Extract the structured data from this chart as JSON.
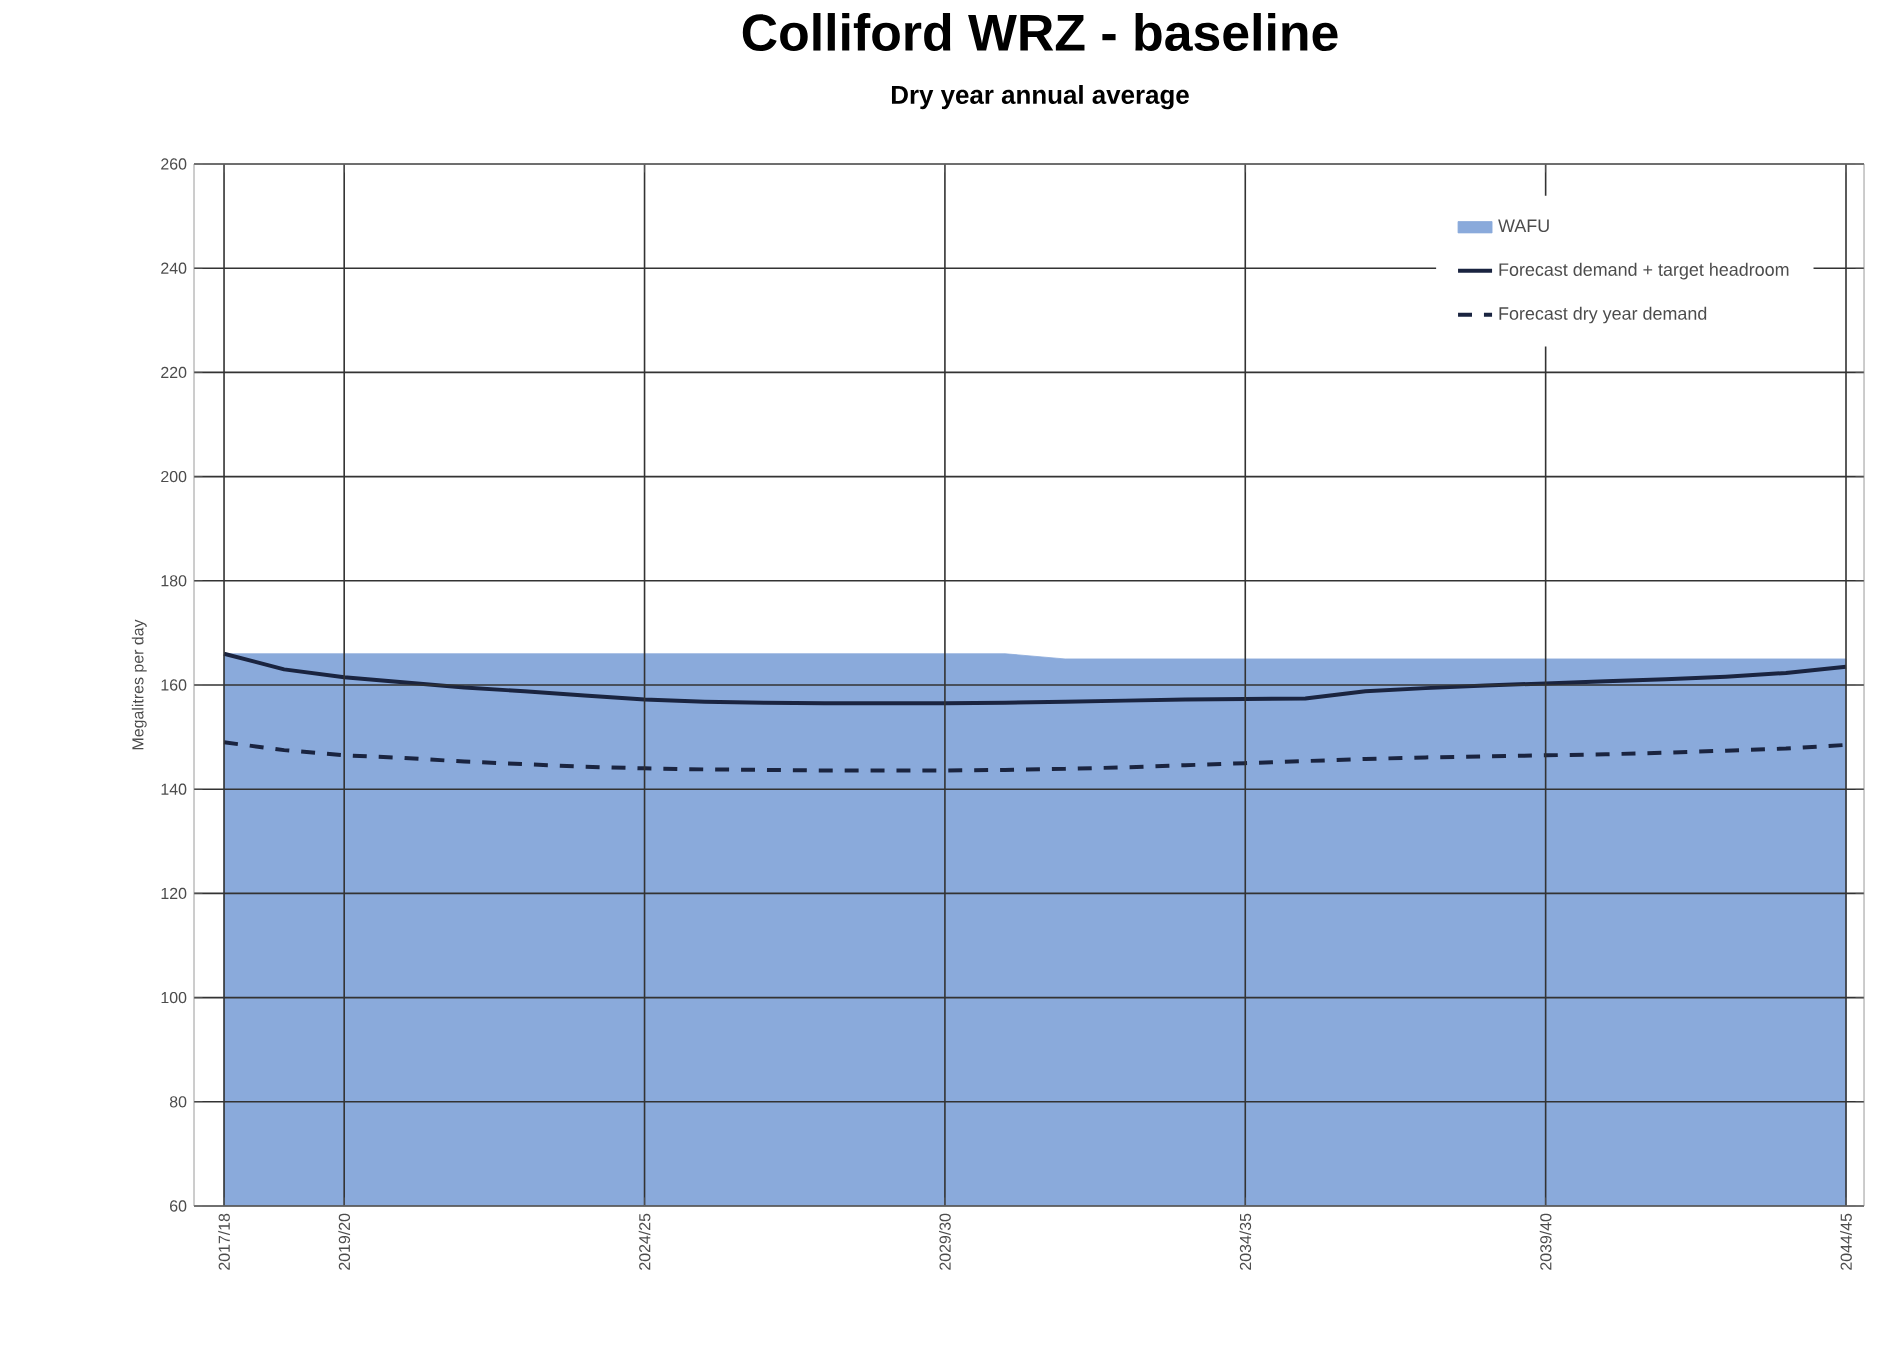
{
  "chart_data": {
    "type": "line",
    "title": "Colliford WRZ - baseline",
    "subtitle": "Dry year annual average",
    "ylabel": "Megalitres per day",
    "categories": [
      "2017/18",
      null,
      "2019/20",
      null,
      null,
      null,
      null,
      "2024/25",
      null,
      null,
      null,
      null,
      "2029/30",
      null,
      null,
      null,
      null,
      "2034/35",
      null,
      null,
      null,
      null,
      "2039/40",
      null,
      null,
      null,
      null,
      "2044/45"
    ],
    "ylim": [
      60,
      260
    ],
    "yticks": [
      60,
      80,
      100,
      120,
      140,
      160,
      180,
      200,
      220,
      240,
      260
    ],
    "grid": true,
    "legend": "top right",
    "series": [
      {
        "name": "WAFU",
        "type": "area",
        "color": "#8aaadb",
        "values": [
          166,
          166,
          166,
          166,
          166,
          166,
          166,
          166,
          166,
          166,
          166,
          166,
          166,
          166,
          165,
          165,
          165,
          165,
          165,
          165,
          165,
          165,
          165,
          165,
          165,
          165,
          165,
          165
        ]
      },
      {
        "name": "Forecast demand + target headroom",
        "type": "line",
        "color": "#1a2440",
        "line_style": "solid",
        "values": [
          166,
          163,
          161.5,
          160.5,
          159.5,
          158.8,
          158,
          157.2,
          156.8,
          156.6,
          156.5,
          156.5,
          156.5,
          156.6,
          156.8,
          157,
          157.2,
          157.3,
          157.4,
          158.8,
          159.4,
          159.9,
          160.3,
          160.7,
          161.1,
          161.6,
          162.3,
          163.5
        ]
      },
      {
        "name": "Forecast dry year demand",
        "type": "line",
        "color": "#1a2440",
        "line_style": "dashed",
        "values": [
          149,
          147.5,
          146.5,
          146,
          145.3,
          144.8,
          144.3,
          144,
          143.8,
          143.7,
          143.6,
          143.6,
          143.6,
          143.7,
          143.9,
          144.2,
          144.6,
          145,
          145.4,
          145.8,
          146.1,
          146.3,
          146.5,
          146.7,
          147,
          147.4,
          147.8,
          148.5
        ]
      }
    ]
  }
}
